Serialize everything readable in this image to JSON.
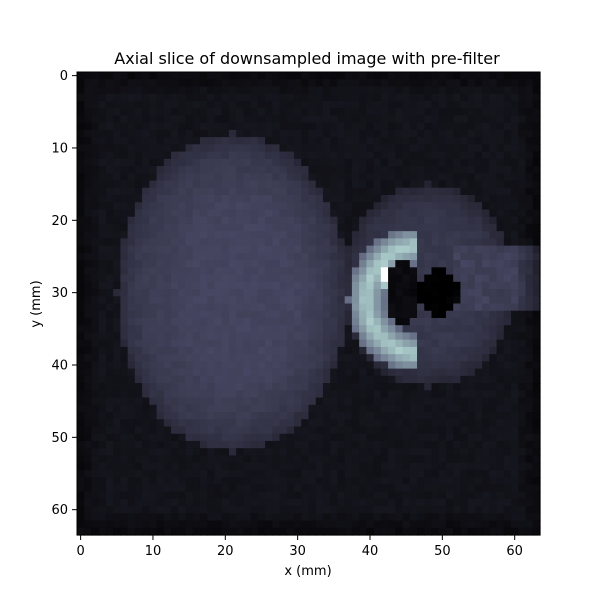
{
  "chart_data": {
    "type": "heatmap",
    "title": "Axial slice of downsampled image with pre-filter",
    "xlabel": "x (mm)",
    "ylabel": "y (mm)",
    "xlim": [
      -0.5,
      63.5
    ],
    "ylim": [
      63.5,
      -0.5
    ],
    "y_axis_inverted": true,
    "grid": false,
    "colormap": "bone",
    "matrix_size": [
      64,
      64
    ],
    "x_ticks": [
      0,
      10,
      20,
      30,
      40,
      50,
      60
    ],
    "y_ticks": [
      0,
      10,
      20,
      30,
      40,
      50,
      60
    ],
    "x_tick_labels": [
      "0",
      "10",
      "20",
      "30",
      "40",
      "50",
      "60"
    ],
    "y_tick_labels": [
      "0",
      "10",
      "20",
      "30",
      "40",
      "50",
      "60"
    ],
    "intensity_range": [
      0,
      1
    ],
    "regions": [
      {
        "shape": "ellipse",
        "cx": 21,
        "cy": 30,
        "rx": 16,
        "ry": 22,
        "value": 0.3
      },
      {
        "shape": "ellipse",
        "cx": 22,
        "cy": 30,
        "rx": 13,
        "ry": 19,
        "value": 0.32
      },
      {
        "shape": "ellipse",
        "cx": 48,
        "cy": 29,
        "rx": 12,
        "ry": 14,
        "value": 0.26
      },
      {
        "shape": "arc",
        "cx": 47,
        "cy": 31,
        "r": 7.5,
        "thickness": 2.5,
        "start_deg": 95,
        "end_deg": 265,
        "value": 0.78
      },
      {
        "shape": "ellipse",
        "cx": 42,
        "cy": 27.5,
        "rx": 0.7,
        "ry": 1.6,
        "value": 1.0
      },
      {
        "shape": "ellipse",
        "cx": 49.5,
        "cy": 30,
        "rx": 3.2,
        "ry": 3.2,
        "value": 0.0
      },
      {
        "shape": "ellipse",
        "cx": 44.5,
        "cy": 30,
        "rx": 2.2,
        "ry": 4.5,
        "value": 0.05
      },
      {
        "shape": "band",
        "x0": 52,
        "x1": 63,
        "y0": 24,
        "y1": 32,
        "value": 0.32
      }
    ],
    "background_value": 0.09,
    "edge_darkening": true
  }
}
